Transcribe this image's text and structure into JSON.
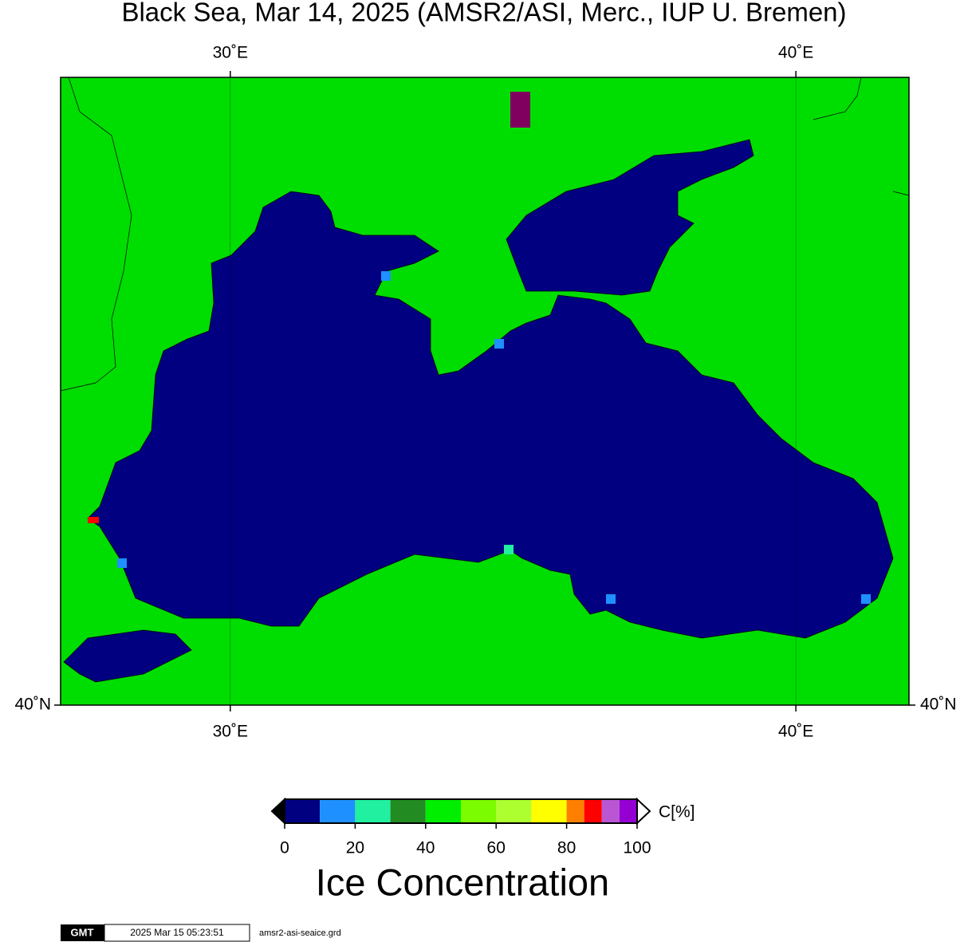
{
  "map": {
    "title": "Black Sea, Mar 14, 2025 (AMSR2/ASI, Merc., IUP U. Bremen)",
    "xlim": [
      27,
      42
    ],
    "xticks": [
      {
        "value": 30,
        "label": "30˚E"
      },
      {
        "value": 40,
        "label": "40˚E"
      }
    ],
    "ylim": [
      40,
      48
    ],
    "yticks": [
      {
        "value": 40,
        "label": "40˚N"
      }
    ],
    "colorbar": {
      "title": "Ice Concentration",
      "unit": "C[%]",
      "lim": [
        0,
        100
      ],
      "ticks": [
        0,
        20,
        40,
        60,
        80,
        100
      ],
      "bounds": [
        0,
        10,
        20,
        30,
        40,
        50,
        60,
        70,
        80,
        85,
        90,
        95,
        100
      ],
      "colors": [
        "#000080",
        "#1e90ff",
        "#20f0a0",
        "#228b22",
        "#00ee00",
        "#7cfc00",
        "#adff2f",
        "#ffff00",
        "#ff7f00",
        "#ff0000",
        "#ba55d3",
        "#9400d3"
      ]
    },
    "footer": {
      "logo": "GMT",
      "timestamp": "2025 Mar 15 05:23:51",
      "file": "amsr2-asi-seaice.grd"
    }
  }
}
